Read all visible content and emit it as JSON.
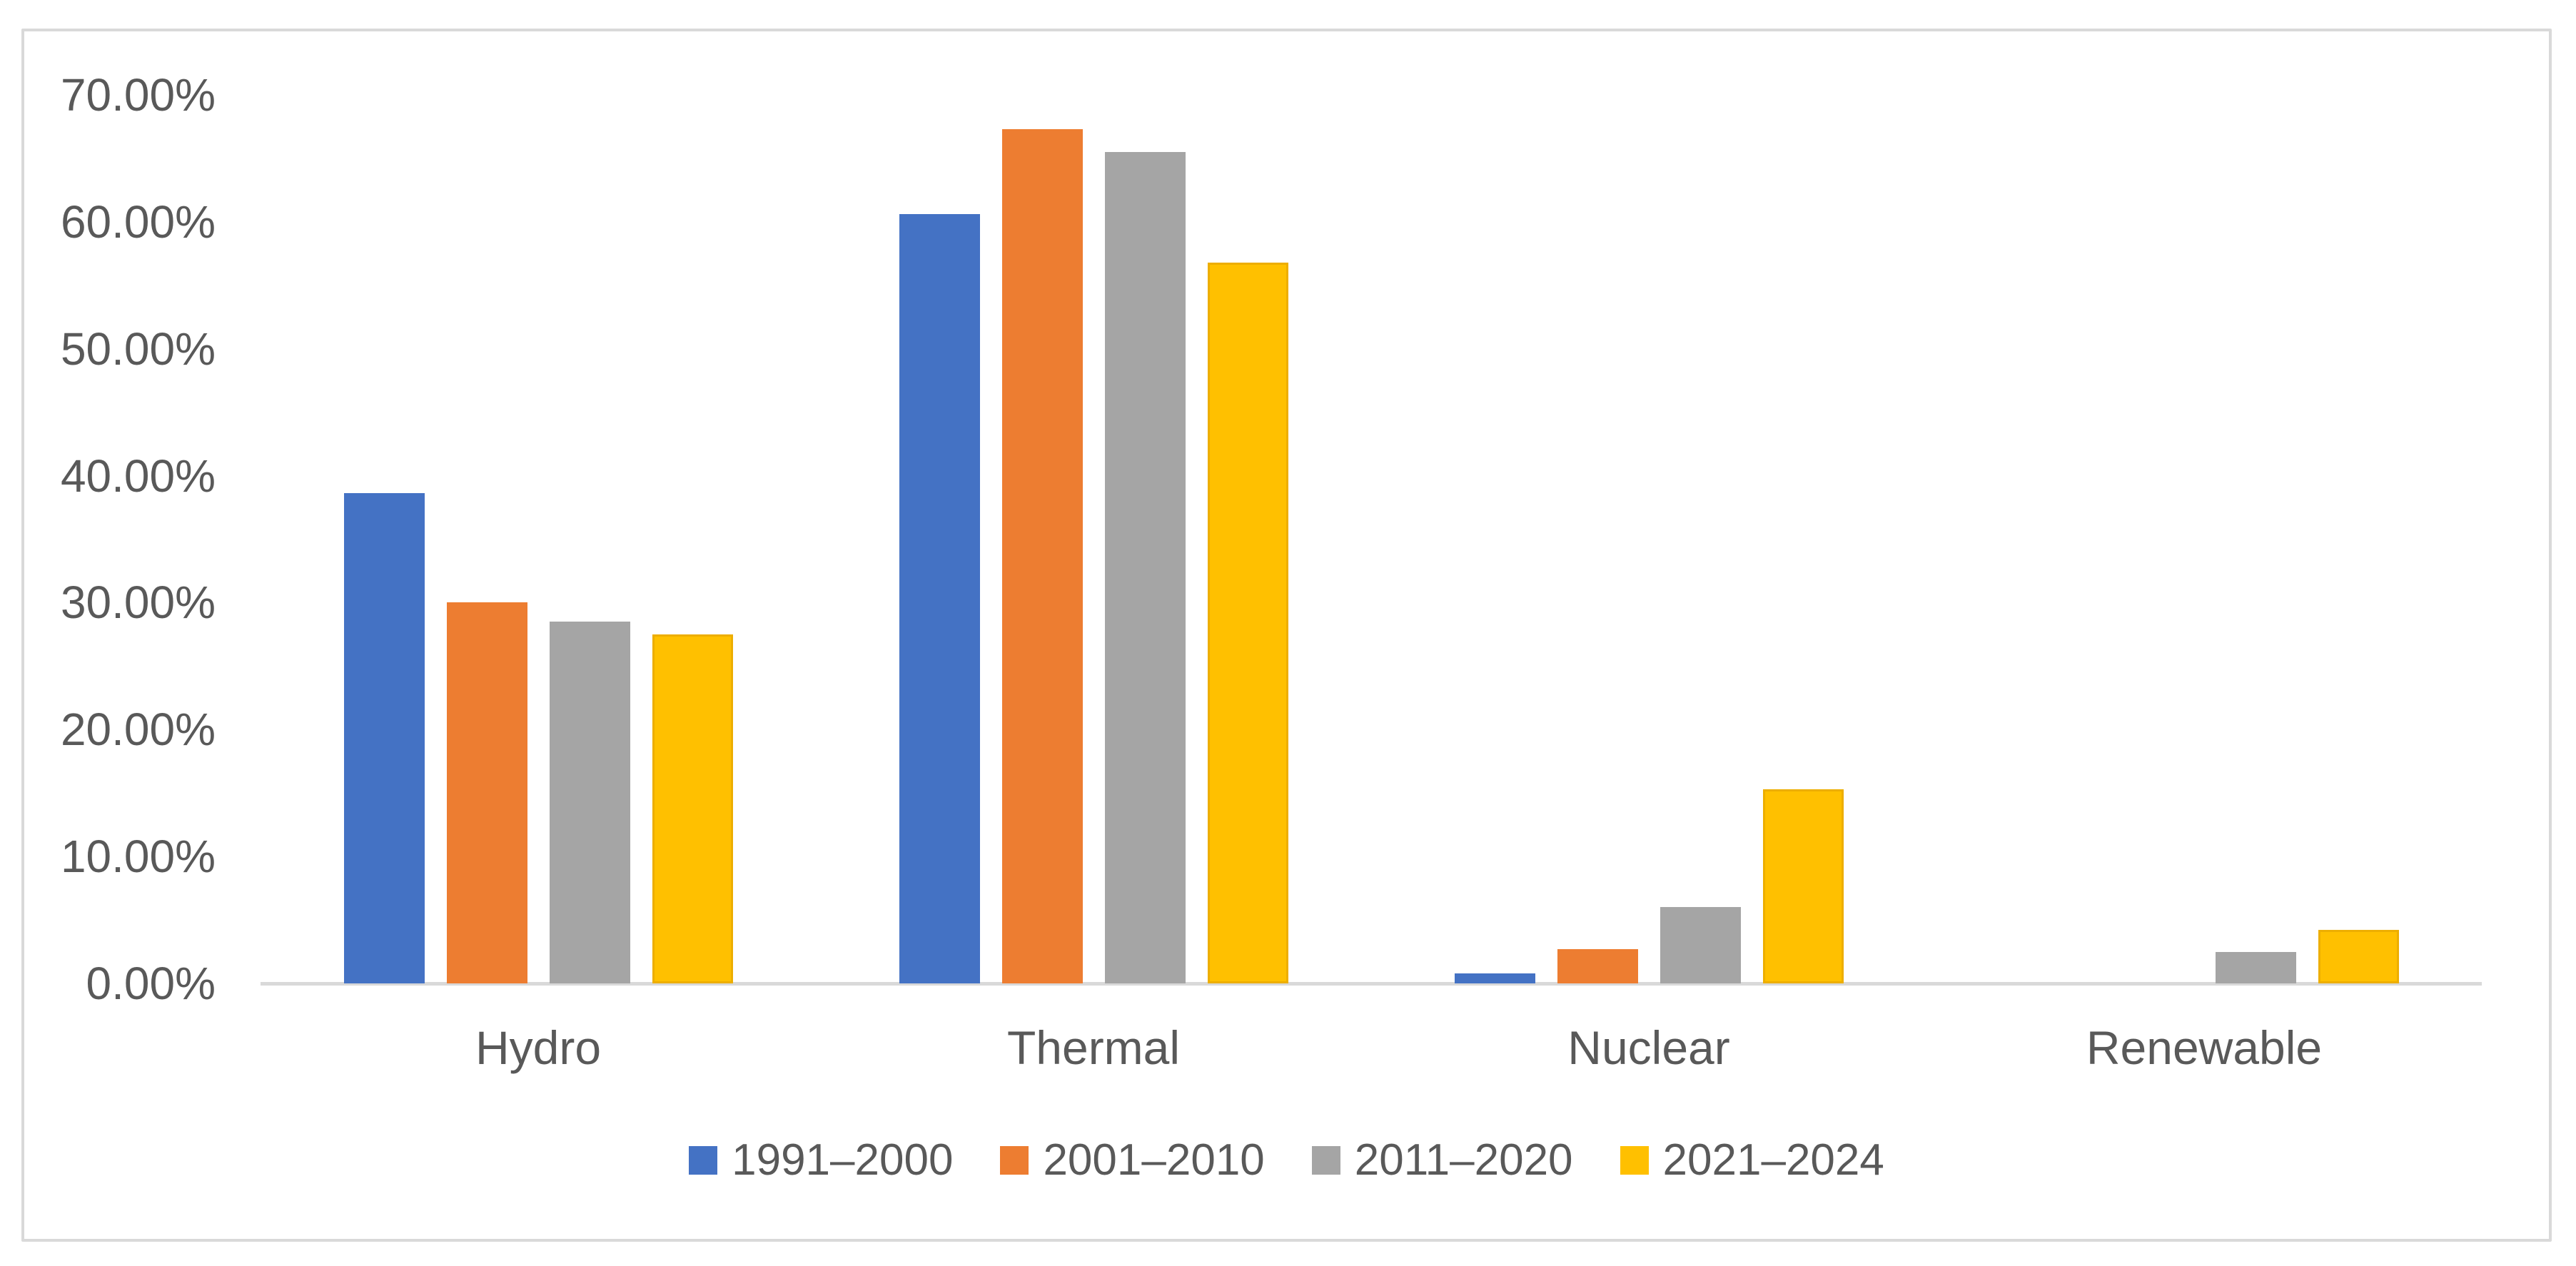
{
  "chart_data": {
    "type": "bar",
    "categories": [
      "Hydro",
      "Thermal",
      "Nuclear",
      "Renewable"
    ],
    "series": [
      {
        "name": "1991–2000",
        "color": "#4472C4",
        "values": [
          38.6,
          60.6,
          0.8,
          0
        ]
      },
      {
        "name": "2001–2010",
        "color": "#ED7D31",
        "values": [
          30.0,
          67.3,
          2.7,
          0
        ]
      },
      {
        "name": "2011–2020",
        "color": "#A5A5A5",
        "values": [
          28.5,
          65.5,
          6.0,
          2.5
        ]
      },
      {
        "name": "2021–2024",
        "color": "#FFC000",
        "values": [
          27.5,
          56.8,
          15.3,
          4.2
        ],
        "pattern": "dashed-horizontal"
      }
    ],
    "yticks": [
      {
        "value": 0,
        "label": "0.00%"
      },
      {
        "value": 10,
        "label": "10.00%"
      },
      {
        "value": 20,
        "label": "20.00%"
      },
      {
        "value": 30,
        "label": "30.00%"
      },
      {
        "value": 40,
        "label": "40.00%"
      },
      {
        "value": 50,
        "label": "50.00%"
      },
      {
        "value": 60,
        "label": "60.00%"
      },
      {
        "value": 70,
        "label": "70.00%"
      }
    ],
    "ylim": [
      0,
      70
    ],
    "xlabel": "",
    "ylabel": "",
    "title": "",
    "grid": false,
    "legend_position": "bottom",
    "axis_color": "#D9D9D9",
    "text_color": "#595959"
  }
}
